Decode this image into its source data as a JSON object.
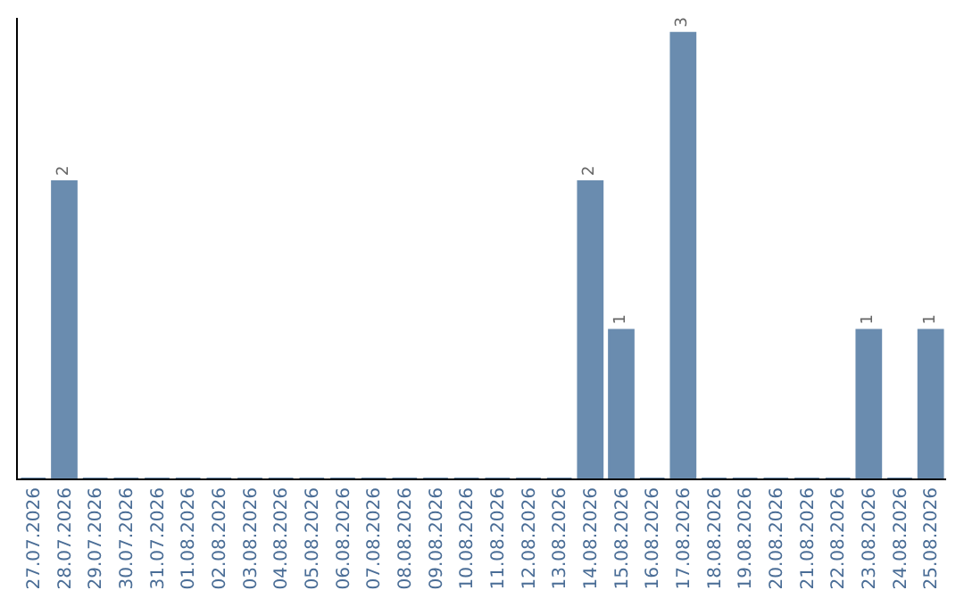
{
  "chart_data": {
    "type": "bar",
    "categories": [
      "27.07.2026",
      "28.07.2026",
      "29.07.2026",
      "30.07.2026",
      "31.07.2026",
      "01.08.2026",
      "02.08.2026",
      "03.08.2026",
      "04.08.2026",
      "05.08.2026",
      "06.08.2026",
      "07.08.2026",
      "08.08.2026",
      "09.08.2026",
      "10.08.2026",
      "11.08.2026",
      "12.08.2026",
      "13.08.2026",
      "14.08.2026",
      "15.08.2026",
      "16.08.2026",
      "17.08.2026",
      "18.08.2026",
      "19.08.2026",
      "20.08.2026",
      "21.08.2026",
      "22.08.2026",
      "23.08.2026",
      "24.08.2026",
      "25.08.2026"
    ],
    "values": [
      0,
      2,
      0,
      0,
      0,
      0,
      0,
      0,
      0,
      0,
      0,
      0,
      0,
      0,
      0,
      0,
      0,
      0,
      2,
      1,
      0,
      3,
      0,
      0,
      0,
      0,
      0,
      1,
      0,
      1
    ],
    "value_labels": [
      null,
      "2",
      null,
      null,
      null,
      null,
      null,
      null,
      null,
      null,
      null,
      null,
      null,
      null,
      null,
      null,
      null,
      null,
      "2",
      "1",
      null,
      "3",
      null,
      null,
      null,
      null,
      null,
      "1",
      null,
      "1"
    ],
    "color": "#6a8caf",
    "ylim": [
      0,
      3.1
    ],
    "tick_labels": "x",
    "legend": false
  }
}
